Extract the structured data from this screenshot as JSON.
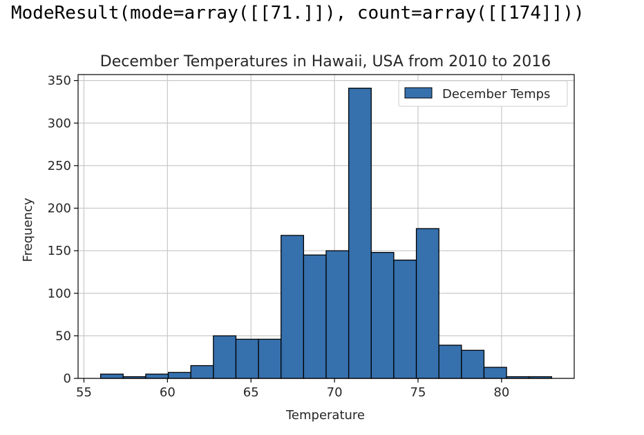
{
  "output_text": "ModeResult(mode=array([[71.]]), count=array([[174]]))",
  "colors": {
    "bar_fill": "#3670ad",
    "bar_edge": "#000000",
    "grid": "#c8c8c8",
    "axis": "#000000",
    "background": "#ffffff"
  },
  "chart_data": {
    "type": "bar",
    "subtype": "histogram",
    "title": "December Temperatures in Hawaii, USA from 2010 to 2016",
    "xlabel": "Temperature",
    "ylabel": "Frequency",
    "xlim": [
      54.65,
      84.35
    ],
    "ylim": [
      0,
      357
    ],
    "x_ticks": [
      55,
      60,
      65,
      70,
      75,
      80
    ],
    "y_ticks": [
      0,
      50,
      100,
      150,
      200,
      250,
      300,
      350
    ],
    "grid": true,
    "legend": {
      "position": "top-right"
    },
    "bin_edges": [
      56.0,
      57.35,
      58.7,
      60.05,
      61.4,
      62.75,
      64.1,
      65.45,
      66.8,
      68.15,
      69.5,
      70.85,
      72.2,
      73.55,
      74.9,
      76.25,
      77.6,
      78.95,
      80.3,
      81.65,
      83.0
    ],
    "series": [
      {
        "name": "December Temps",
        "values": [
          5,
          2,
          5,
          7,
          15,
          50,
          46,
          46,
          168,
          145,
          150,
          341,
          148,
          139,
          176,
          39,
          33,
          13,
          2,
          2
        ]
      }
    ]
  }
}
